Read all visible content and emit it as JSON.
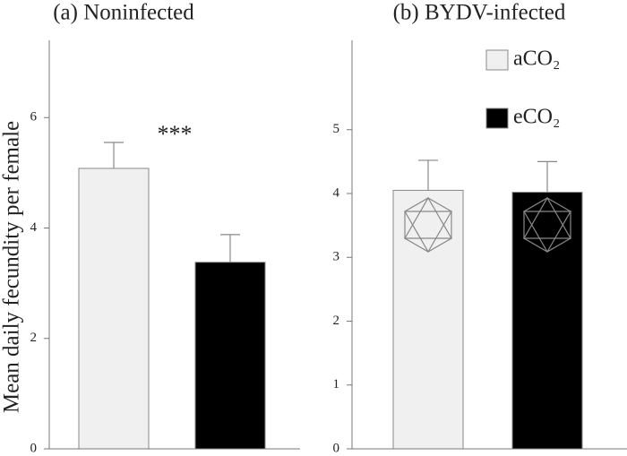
{
  "chart_data": [
    {
      "type": "bar",
      "title": "(a) Noninfected",
      "ylabel": "Mean daily fecundity per female",
      "ylim": [
        0,
        7.4
      ],
      "yticks": [
        0,
        2,
        4,
        6
      ],
      "annotation": "***",
      "series": [
        {
          "color": "#f0f0f0",
          "values": [
            5.08
          ],
          "errors": [
            0.47
          ]
        },
        {
          "color": "#000000",
          "values": [
            3.38
          ],
          "errors": [
            0.5
          ]
        }
      ]
    },
    {
      "type": "bar",
      "title": "(b) BYDV-infected",
      "ylim": [
        0,
        6.4
      ],
      "yticks": [
        0,
        1,
        2,
        3,
        4,
        5
      ],
      "legend": "top-right",
      "series": [
        {
          "name": "aCO₂",
          "color": "#f0f0f0",
          "values": [
            4.05
          ],
          "errors": [
            0.47
          ]
        },
        {
          "name": "eCO₂",
          "color": "#000000",
          "values": [
            4.02
          ],
          "errors": [
            0.48
          ]
        }
      ]
    }
  ]
}
